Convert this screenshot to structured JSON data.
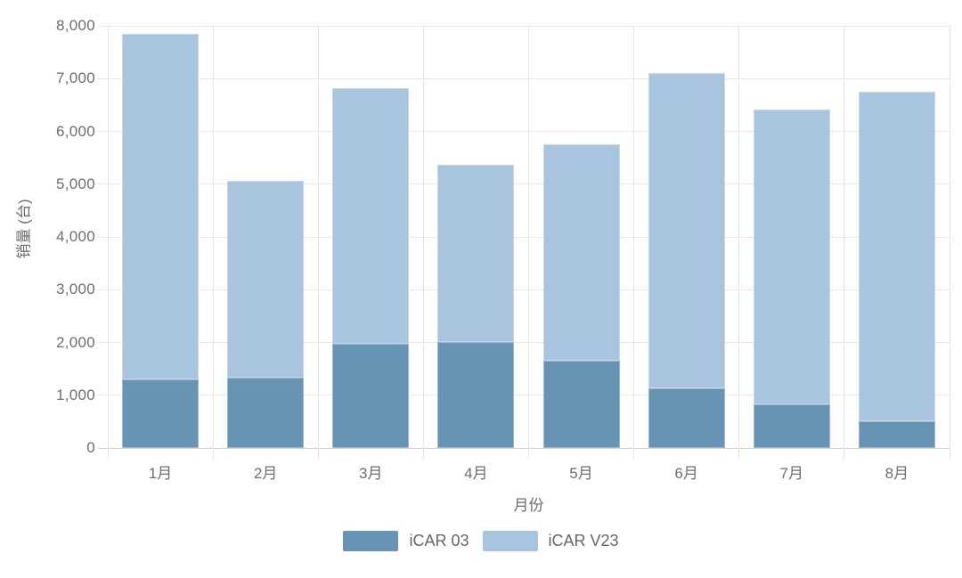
{
  "chart": {
    "background": "#ffffff",
    "grid_color": "#e7e7e7",
    "axis_line_color": "#d0d0d0",
    "text_color": "#6e6e6e"
  },
  "chart_data": {
    "type": "bar",
    "stacked": true,
    "title": "",
    "xlabel": "月份",
    "ylabel": "销量 (台)",
    "categories": [
      "1月",
      "2月",
      "3月",
      "4月",
      "5月",
      "6月",
      "7月",
      "8月"
    ],
    "series": [
      {
        "name": "iCAR 03",
        "color": "#6793b5",
        "values": [
          1300,
          1330,
          1970,
          2010,
          1660,
          1130,
          820,
          500
        ]
      },
      {
        "name": "iCAR V23",
        "color": "#a8c4df",
        "values": [
          6550,
          3725,
          4850,
          3360,
          4100,
          5980,
          5590,
          6250
        ]
      }
    ],
    "stack_totals": [
      7850,
      5055,
      6820,
      5370,
      5760,
      7110,
      6410,
      6750
    ],
    "ylim": [
      0,
      8000
    ],
    "ytick_step": 1000,
    "ytick_labels": [
      "0",
      "1,000",
      "2,000",
      "3,000",
      "4,000",
      "5,000",
      "6,000",
      "7,000",
      "8,000"
    ],
    "grid": true,
    "legend_position": "bottom"
  }
}
